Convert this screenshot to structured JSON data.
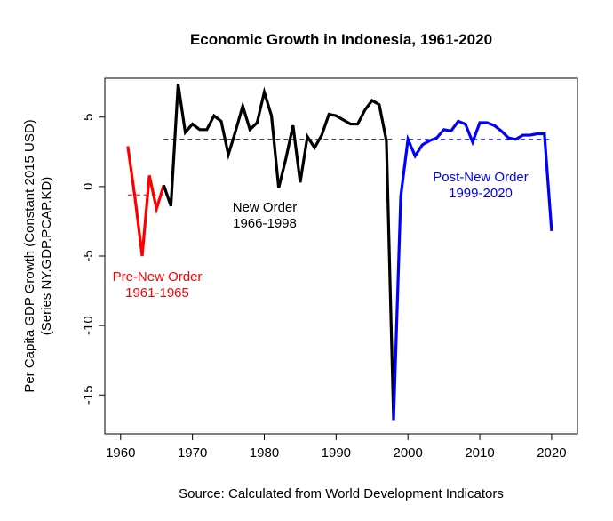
{
  "chart_data": {
    "type": "line",
    "title": "Economic Growth in Indonesia, 1961-2020",
    "xlabel": "",
    "ylabel": [
      "Per Capita GDP Growth (Constant 2015 USD)",
      "(Series NY.GDP.PCAP.KD)"
    ],
    "caption": "Source: Calculated from World Development Indicators",
    "xlim": [
      1957.8,
      2023.6
    ],
    "ylim": [
      -17.8,
      7.8
    ],
    "xticks": [
      1960,
      1970,
      1980,
      1990,
      2000,
      2010,
      2020
    ],
    "yticks": [
      -15,
      -10,
      -5,
      0,
      5
    ],
    "series": [
      {
        "name": "Pre-New Order",
        "label": [
          "Pre-New Order",
          "1961-1965"
        ],
        "color": "#ff0000",
        "mean": -0.6,
        "x": [
          1961,
          1962,
          1963,
          1964,
          1965,
          1966
        ],
        "y": [
          2.9,
          -0.8,
          -5.0,
          0.8,
          -1.6,
          0.1
        ]
      },
      {
        "name": "New Order",
        "label": [
          "New Order",
          "1966-1998"
        ],
        "color": "#000000",
        "mean": 3.4,
        "x": [
          1966,
          1967,
          1968,
          1969,
          1970,
          1971,
          1972,
          1973,
          1974,
          1975,
          1976,
          1977,
          1978,
          1979,
          1980,
          1981,
          1982,
          1983,
          1984,
          1985,
          1986,
          1987,
          1988,
          1989,
          1990,
          1991,
          1992,
          1993,
          1994,
          1995,
          1996,
          1997,
          1998
        ],
        "y": [
          0.1,
          -1.4,
          7.4,
          3.9,
          4.5,
          4.1,
          4.1,
          5.1,
          4.7,
          2.3,
          4.0,
          5.8,
          4.1,
          4.6,
          6.8,
          5.1,
          -0.1,
          2.0,
          4.4,
          0.3,
          3.6,
          2.8,
          3.7,
          5.2,
          5.1,
          4.8,
          4.5,
          4.5,
          5.5,
          6.2,
          5.9,
          3.3,
          -16.8
        ]
      },
      {
        "name": "Post-New Order",
        "label": [
          "Post-New Order",
          "1999-2020"
        ],
        "color": "#0000ff",
        "mean": 3.4,
        "x": [
          1998,
          1999,
          2000,
          2001,
          2002,
          2003,
          2004,
          2005,
          2006,
          2007,
          2008,
          2009,
          2010,
          2011,
          2012,
          2013,
          2014,
          2015,
          2016,
          2017,
          2018,
          2019,
          2020
        ],
        "y": [
          -16.8,
          -0.7,
          3.4,
          2.2,
          3.0,
          3.3,
          3.5,
          4.1,
          4.0,
          4.7,
          4.5,
          3.2,
          4.6,
          4.6,
          4.4,
          4.0,
          3.5,
          3.4,
          3.7,
          3.7,
          3.8,
          3.8,
          -3.2
        ]
      }
    ]
  }
}
